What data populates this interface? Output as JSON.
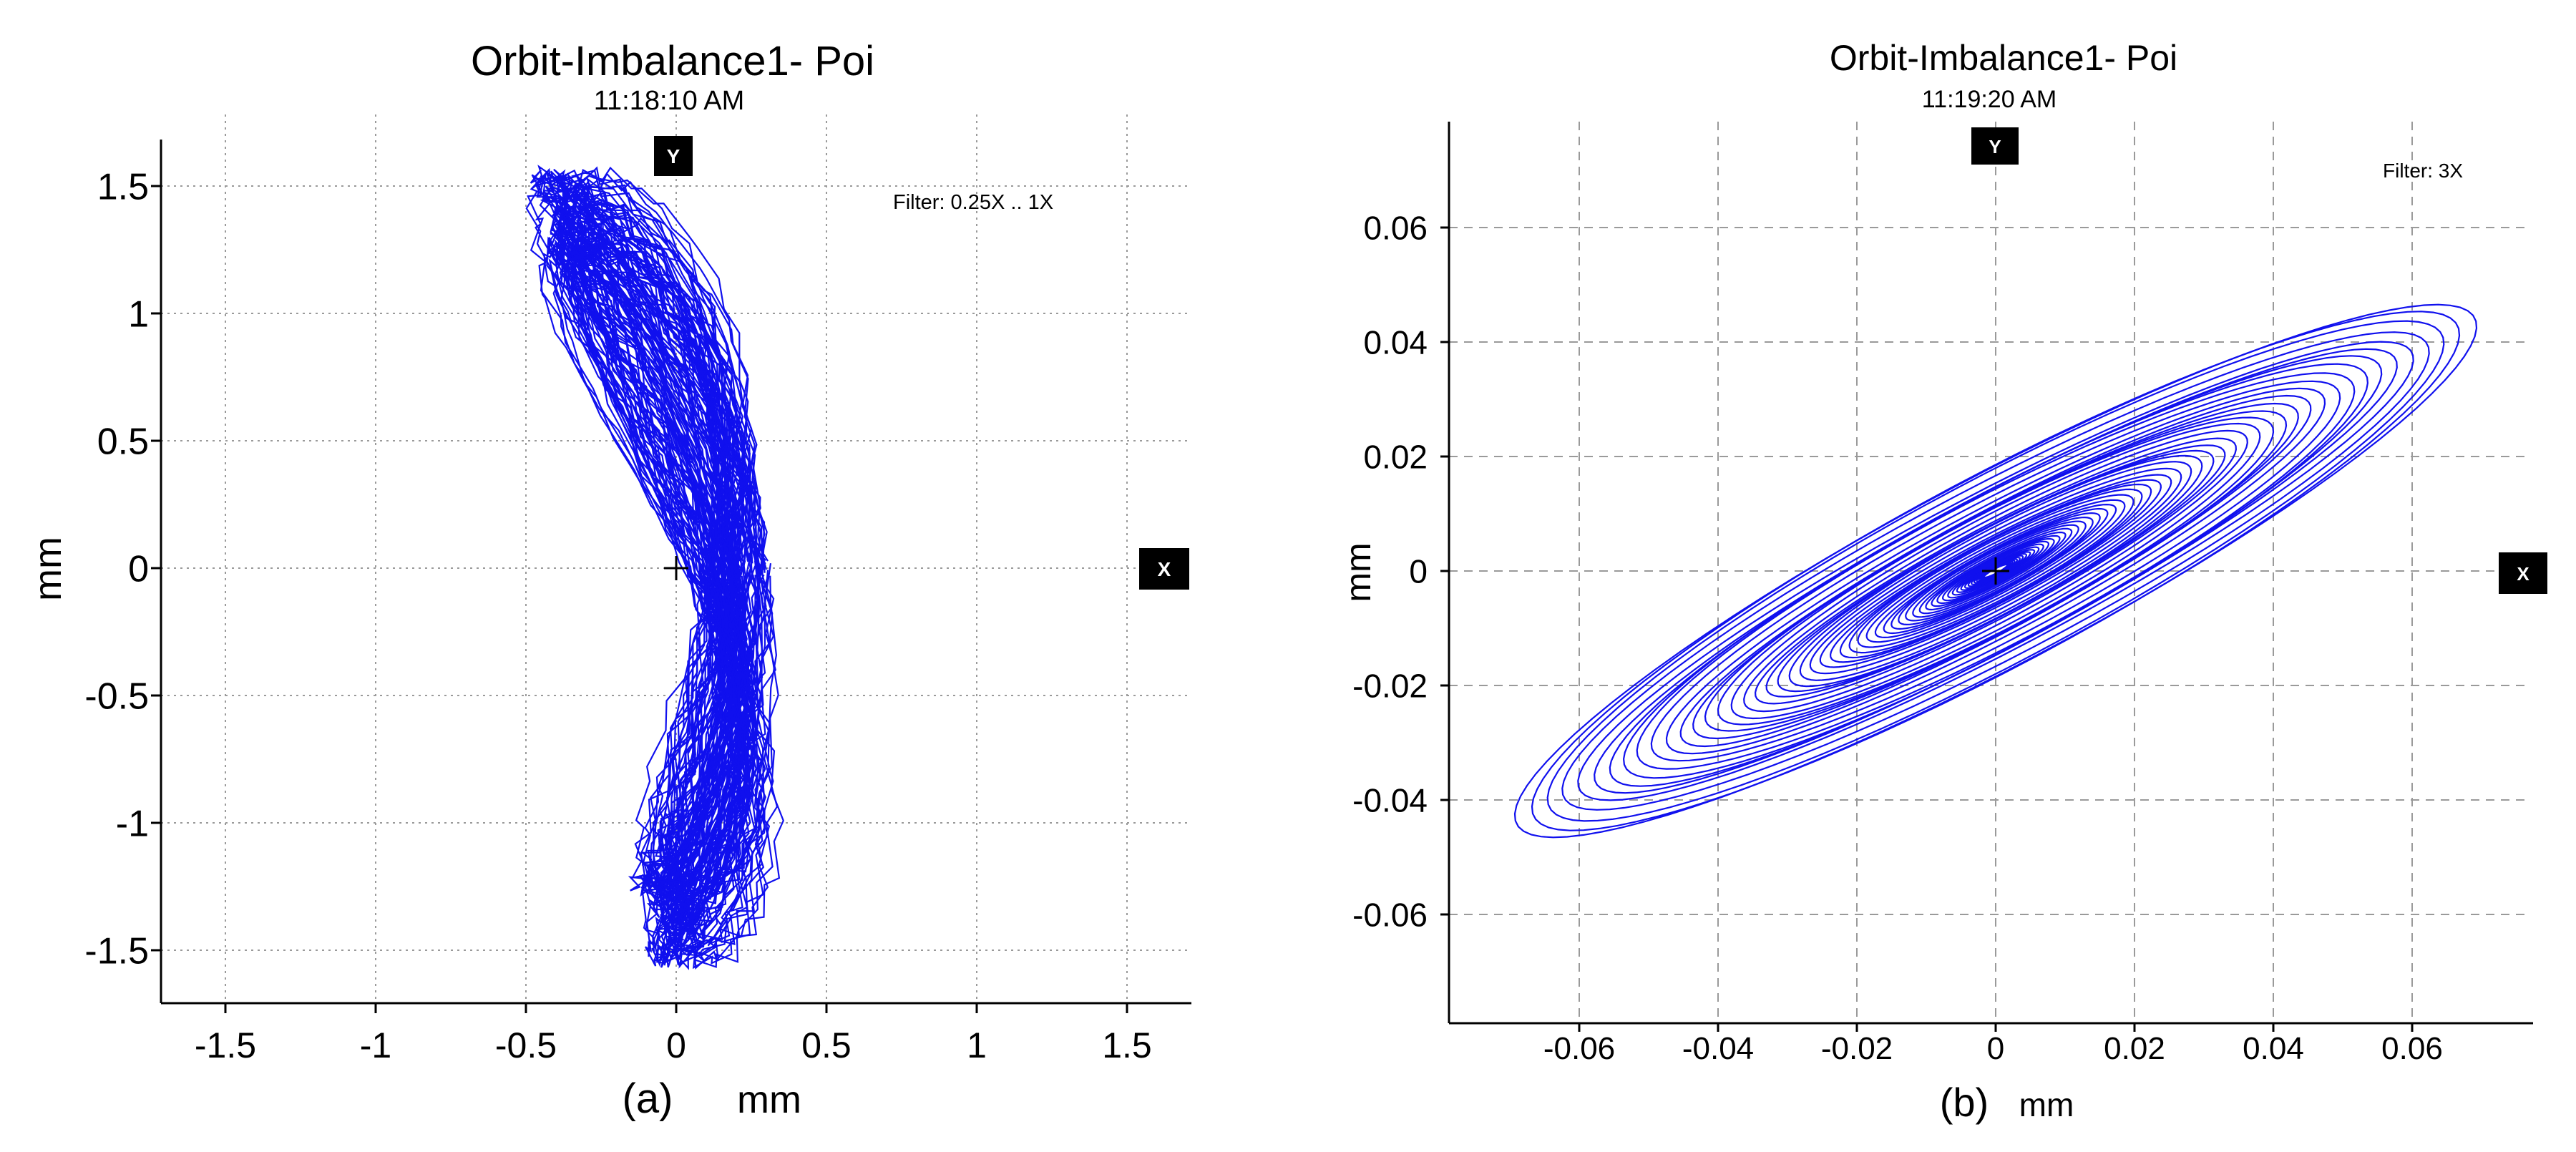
{
  "chart_data": [
    {
      "type": "scatter",
      "subtype": "orbit",
      "title": "Orbit-Imbalance1- Poi",
      "subtitle": "11:18:10 AM",
      "filter_label": "Filter: 0.25X .. 1X",
      "y_marker": "Y",
      "x_marker": "X",
      "panel_label": "(a)",
      "xlabel": "mm",
      "ylabel": "mm",
      "xlim": [
        -1.7,
        1.7
      ],
      "ylim": [
        -1.7,
        1.7
      ],
      "xticks": [
        -1.5,
        -1,
        -0.5,
        0,
        0.5,
        1,
        1.5
      ],
      "yticks": [
        1.5,
        1,
        0.5,
        0,
        -0.5,
        -1,
        -1.5
      ],
      "xtick_labels": [
        "-1.5",
        "-1",
        "-0.5",
        "0",
        "0.5",
        "1",
        "1.5"
      ],
      "ytick_labels": [
        "1.5",
        "1",
        "0.5",
        "0",
        "-0.5",
        "-1",
        "-1.5"
      ],
      "grid": true,
      "series_color": "#1010ee",
      "orbit": {
        "x_range": [
          -0.45,
          0.45
        ],
        "y_range": [
          -1.55,
          1.55
        ],
        "lobes": 2,
        "loops": 70
      }
    },
    {
      "type": "scatter",
      "subtype": "orbit",
      "title": "Orbit-Imbalance1- Poi",
      "subtitle": "11:19:20 AM",
      "filter_label": "Filter: 3X",
      "y_marker": "Y",
      "x_marker": "X",
      "panel_label": "(b)",
      "xlabel": "mm",
      "ylabel": "mm",
      "xlim": [
        -0.08,
        0.08
      ],
      "ylim": [
        -0.08,
        0.08
      ],
      "xticks": [
        -0.06,
        -0.04,
        -0.02,
        0,
        0.02,
        0.04,
        0.06
      ],
      "yticks": [
        0.06,
        0.04,
        0.02,
        0,
        -0.02,
        -0.04,
        -0.06
      ],
      "xtick_labels": [
        "-0.06",
        "-0.04",
        "-0.02",
        "0",
        "0.02",
        "0.04",
        "0.06"
      ],
      "ytick_labels": [
        "0.06",
        "0.04",
        "0.02",
        "0",
        "-0.02",
        "-0.04",
        "-0.06"
      ],
      "grid": true,
      "series_color": "#1010ee",
      "orbit": {
        "major_axis_angle_deg": 33,
        "max_radius": 0.082,
        "min_radius": 0.002,
        "aspect": 0.19,
        "loops": 55
      }
    }
  ]
}
